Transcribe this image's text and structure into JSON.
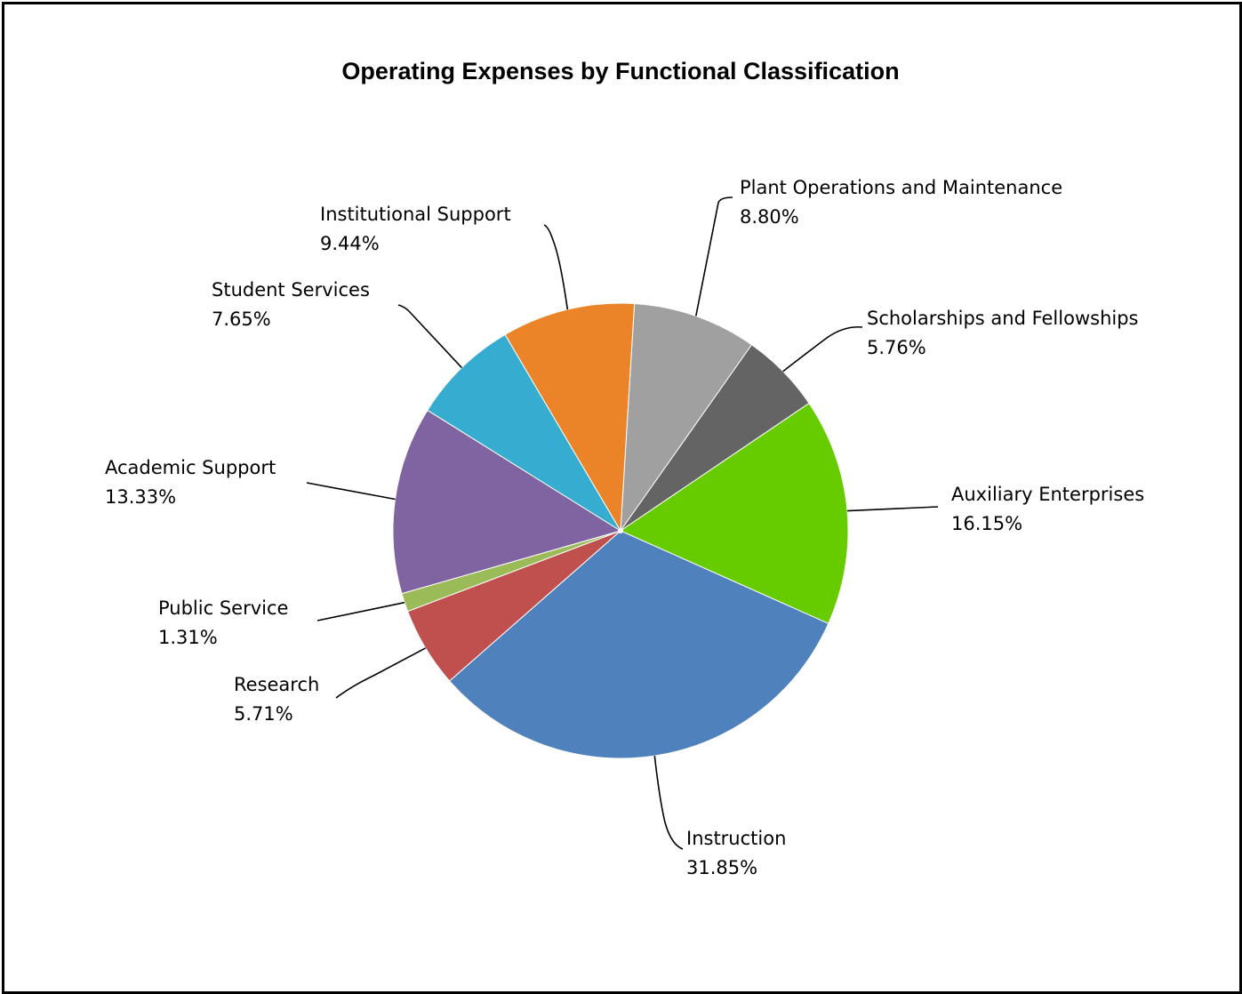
{
  "chart_data": {
    "type": "pie",
    "title": "Operating Expenses by Functional Classification",
    "slices": [
      {
        "label": "Plant Operations and Maintenance",
        "value": 8.8,
        "display": "8.80%",
        "color": "#a0a0a0"
      },
      {
        "label": "Scholarships and Fellowships",
        "value": 5.76,
        "display": "5.76%",
        "color": "#646464"
      },
      {
        "label": "Auxiliary Enterprises",
        "value": 16.15,
        "display": "16.15%",
        "color": "#66cc00"
      },
      {
        "label": "Instruction",
        "value": 31.85,
        "display": "31.85%",
        "color": "#4f81bd"
      },
      {
        "label": "Research",
        "value": 5.71,
        "display": "5.71%",
        "color": "#c0504d"
      },
      {
        "label": "Public Service",
        "value": 1.31,
        "display": "1.31%",
        "color": "#9bbb59"
      },
      {
        "label": "Academic Support",
        "value": 13.33,
        "display": "13.33%",
        "color": "#8064a2"
      },
      {
        "label": "Student Services",
        "value": 7.65,
        "display": "7.65%",
        "color": "#36acd0"
      },
      {
        "label": "Institutional Support",
        "value": 9.44,
        "display": "9.44%",
        "color": "#eb8428"
      }
    ],
    "legend": "none (data labels with leader lines)"
  }
}
